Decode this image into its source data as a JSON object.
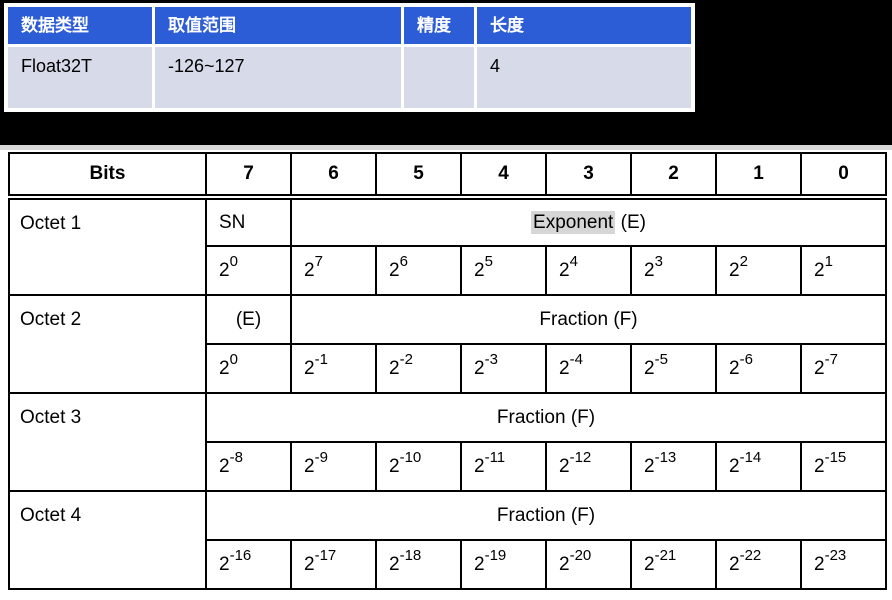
{
  "colors": {
    "spec_header_blue": "#2D5CD7",
    "spec_row_lavender": "#D6DAE9",
    "exponent_highlight_gray": "#D6D6D6",
    "band_black": "#000000"
  },
  "spec_table": {
    "headers": [
      "数据类型",
      "取值范围",
      "精度",
      "长度"
    ],
    "row": [
      "Float32T",
      "-126~127",
      "",
      "4"
    ]
  },
  "bit_table": {
    "power_base": "2",
    "header": {
      "label": "Bits",
      "bits": [
        "7",
        "6",
        "5",
        "4",
        "3",
        "2",
        "1",
        "0"
      ]
    },
    "octets": [
      {
        "label": "Octet 1",
        "first_cell": "SN",
        "span_highlight": "Exponent",
        "span_rest": " (E)",
        "exponents": [
          "0",
          "7",
          "6",
          "5",
          "4",
          "3",
          "2",
          "1"
        ]
      },
      {
        "label": "Octet 2",
        "first_cell": "(E)",
        "span_label": "Fraction (F)",
        "exponents": [
          "0",
          "-1",
          "-2",
          "-3",
          "-4",
          "-5",
          "-6",
          "-7"
        ]
      },
      {
        "label": "Octet 3",
        "span_label": "Fraction (F)",
        "exponents": [
          "-8",
          "-9",
          "-10",
          "-11",
          "-12",
          "-13",
          "-14",
          "-15"
        ]
      },
      {
        "label": "Octet 4",
        "span_label": "Fraction (F)",
        "exponents": [
          "-16",
          "-17",
          "-18",
          "-19",
          "-20",
          "-21",
          "-22",
          "-23"
        ]
      }
    ]
  }
}
